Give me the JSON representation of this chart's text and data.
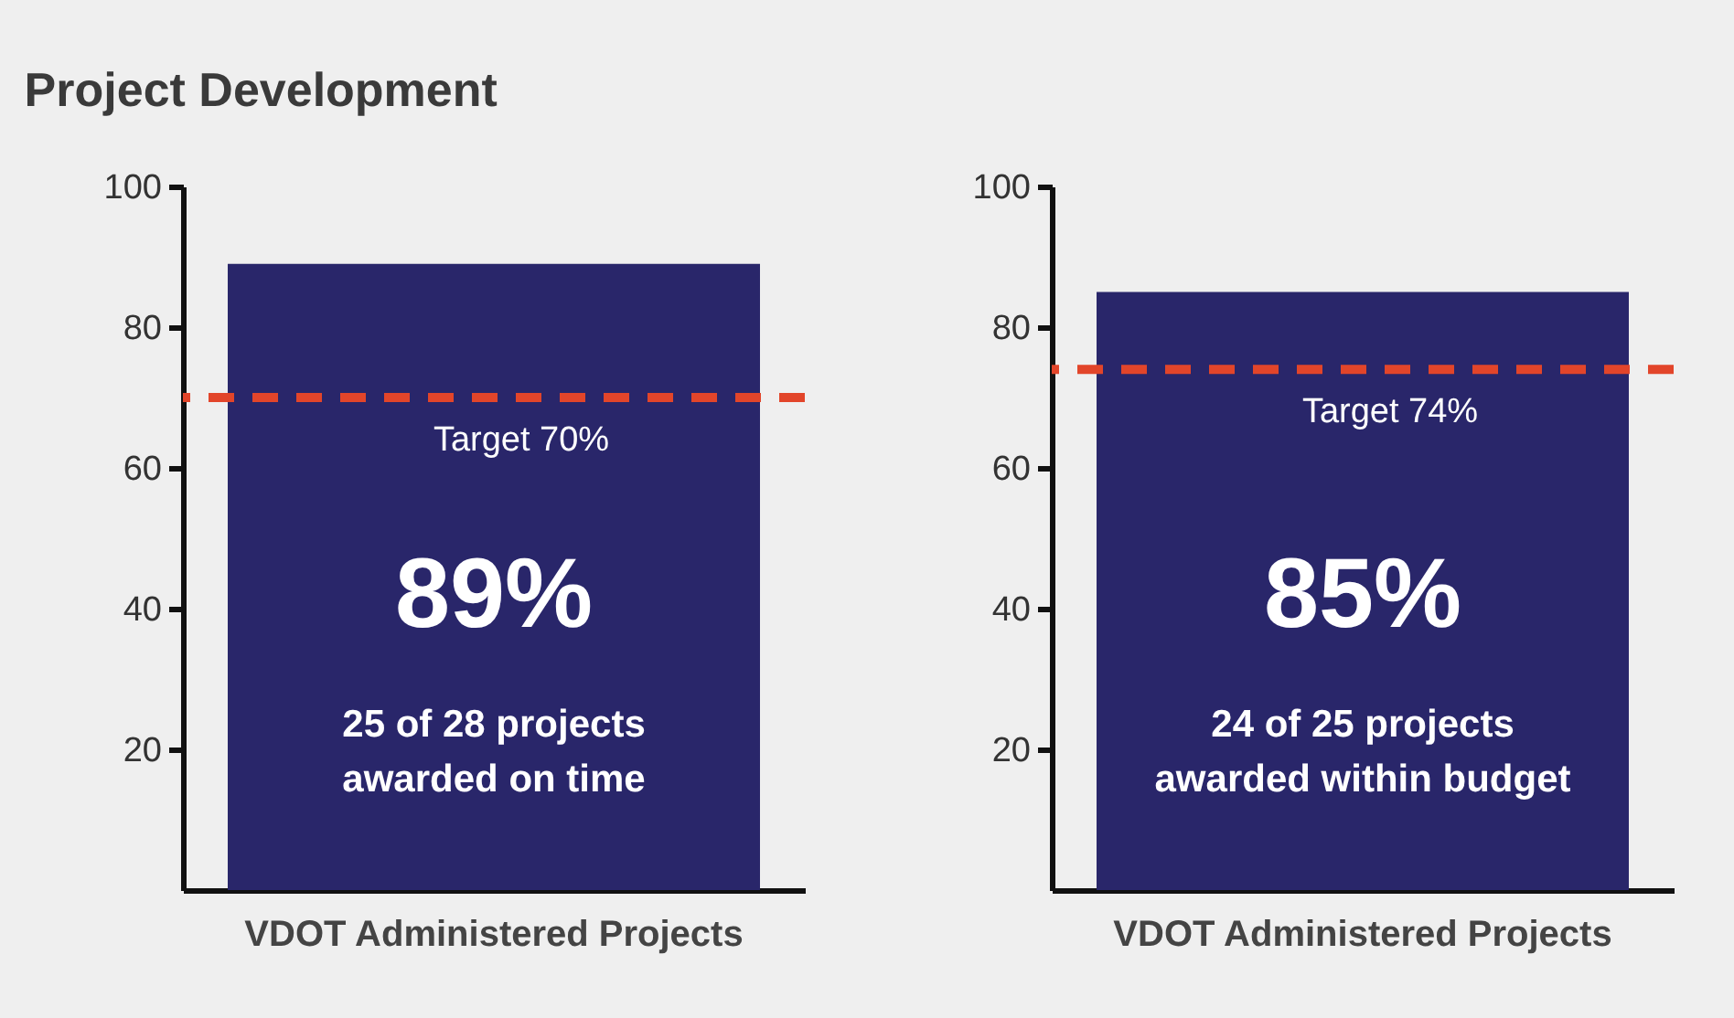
{
  "chart_data": [
    {
      "type": "bar",
      "title": "Project Development",
      "categories": [
        "VDOT Administered Projects"
      ],
      "values": [
        89
      ],
      "color": "#29266a",
      "value_labels": [
        "89%"
      ],
      "annotations": [
        "25 of 28 projects awarded on time"
      ],
      "ylim": [
        0,
        100
      ],
      "yticks": [
        20,
        40,
        60,
        80,
        100
      ],
      "grid": false,
      "ref_lines": [
        {
          "axis": "y",
          "value": 70,
          "label": "Target 70%",
          "color": "#e2452a",
          "line_style": "dashed"
        }
      ]
    },
    {
      "type": "bar",
      "categories": [
        "VDOT Administered Projects"
      ],
      "values": [
        85
      ],
      "color": "#29266a",
      "value_labels": [
        "85%"
      ],
      "annotations": [
        "24 of 25 projects awarded within budget"
      ],
      "ylim": [
        0,
        100
      ],
      "yticks": [
        20,
        40,
        60,
        80,
        100
      ],
      "grid": false,
      "ref_lines": [
        {
          "axis": "y",
          "value": 74,
          "label": "Target 74%",
          "color": "#e2452a",
          "line_style": "dashed"
        }
      ]
    }
  ]
}
